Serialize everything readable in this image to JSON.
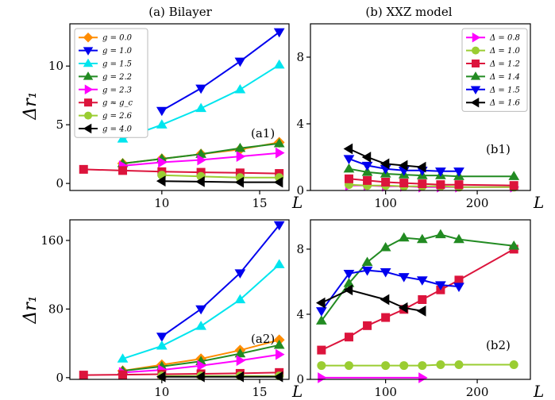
{
  "figure": {
    "title_left": "(a) Bilayer",
    "title_right": "(b) XXZ model",
    "ylabel": "Δr₁",
    "xlabel": "L"
  },
  "chart_data": [
    {
      "id": "a1",
      "type": "line",
      "tag": "(a1)",
      "xlabel": "L",
      "ylabel": "Δr₁",
      "xlim": [
        5.3,
        16.5
      ],
      "ylim": [
        -0.6,
        13.6
      ],
      "xticks": [
        10,
        15
      ],
      "yticks": [
        0,
        5,
        10
      ],
      "legend": "top-left",
      "series": [
        {
          "name": "g = 0.0",
          "color": "#ff8c00",
          "marker": "diamond",
          "x": [
            8,
            10,
            12,
            14,
            16
          ],
          "y": [
            1.7,
            2.1,
            2.5,
            2.9,
            3.5
          ]
        },
        {
          "name": "g = 1.0",
          "color": "#0000ee",
          "marker": "tri-down",
          "x": [
            10,
            12,
            14,
            16
          ],
          "y": [
            6.2,
            8.1,
            10.4,
            12.9
          ]
        },
        {
          "name": "g = 1.5",
          "color": "#00e5ee",
          "marker": "tri-up",
          "x": [
            8,
            10,
            12,
            14,
            16
          ],
          "y": [
            3.8,
            5.0,
            6.4,
            8.0,
            10.1
          ]
        },
        {
          "name": "g = 2.2",
          "color": "#228b22",
          "marker": "tri-up",
          "x": [
            8,
            10,
            12,
            14,
            16
          ],
          "y": [
            1.7,
            2.1,
            2.5,
            3.0,
            3.4
          ]
        },
        {
          "name": "g = 2.3",
          "color": "#ff00ff",
          "marker": "tri-right",
          "x": [
            8,
            10,
            12,
            14,
            16
          ],
          "y": [
            1.5,
            1.8,
            2.0,
            2.3,
            2.6
          ]
        },
        {
          "name": "g ≈ g_c",
          "color": "#dc143c",
          "marker": "square",
          "x": [
            6,
            8,
            10,
            12,
            14,
            16
          ],
          "y": [
            1.2,
            1.1,
            1.0,
            0.95,
            0.9,
            0.85
          ]
        },
        {
          "name": "g = 2.6",
          "color": "#9acd32",
          "marker": "circle",
          "x": [
            10,
            12,
            14,
            16
          ],
          "y": [
            0.7,
            0.6,
            0.5,
            0.5
          ]
        },
        {
          "name": "g = 4.0",
          "color": "#000000",
          "marker": "tri-left",
          "x": [
            10,
            12,
            14,
            16
          ],
          "y": [
            0.2,
            0.15,
            0.1,
            0.1
          ]
        }
      ]
    },
    {
      "id": "b1",
      "type": "line",
      "tag": "(b1)",
      "xlabel": "L",
      "ylabel": "",
      "xlim": [
        18,
        258
      ],
      "ylim": [
        0,
        10
      ],
      "xticks": [
        100,
        200
      ],
      "yticks": [
        0,
        4,
        8
      ],
      "legend": "top-right",
      "series": [
        {
          "name": "Δ = 0.8",
          "color": "#ff00ff",
          "marker": "tri-right",
          "x": [
            60,
            80,
            100,
            120,
            140,
            160,
            180,
            240
          ],
          "y": [
            0.3,
            0.3,
            0.25,
            0.25,
            0.2,
            0.2,
            0.2,
            0.2
          ]
        },
        {
          "name": "Δ = 1.0",
          "color": "#9acd32",
          "marker": "circle",
          "x": [
            60,
            80,
            100,
            120,
            140,
            160,
            180,
            240
          ],
          "y": [
            0.35,
            0.3,
            0.3,
            0.25,
            0.25,
            0.25,
            0.2,
            0.2
          ]
        },
        {
          "name": "Δ = 1.2",
          "color": "#dc143c",
          "marker": "square",
          "x": [
            60,
            80,
            100,
            120,
            140,
            160,
            180,
            240
          ],
          "y": [
            0.7,
            0.6,
            0.5,
            0.45,
            0.4,
            0.35,
            0.35,
            0.3
          ]
        },
        {
          "name": "Δ = 1.4",
          "color": "#228b22",
          "marker": "tri-up",
          "x": [
            60,
            80,
            100,
            120,
            140,
            160,
            180,
            240
          ],
          "y": [
            1.3,
            1.1,
            1.0,
            0.95,
            0.9,
            0.9,
            0.85,
            0.85
          ]
        },
        {
          "name": "Δ = 1.5",
          "color": "#0000ee",
          "marker": "tri-down",
          "x": [
            60,
            80,
            100,
            120,
            140,
            160,
            180
          ],
          "y": [
            1.9,
            1.5,
            1.3,
            1.2,
            1.2,
            1.15,
            1.15
          ]
        },
        {
          "name": "Δ = 1.6",
          "color": "#000000",
          "marker": "tri-left",
          "x": [
            60,
            80,
            100,
            120,
            140
          ],
          "y": [
            2.5,
            2.0,
            1.6,
            1.5,
            1.4
          ]
        }
      ]
    },
    {
      "id": "a2",
      "type": "line",
      "tag": "(a2)",
      "xlabel": "L",
      "ylabel": "Δr₁",
      "xlim": [
        5.3,
        16.5
      ],
      "ylim": [
        -2,
        184
      ],
      "xticks": [
        10,
        15
      ],
      "yticks": [
        0,
        80,
        160
      ],
      "series": [
        {
          "name": "g = 0.0",
          "color": "#ff8c00",
          "marker": "diamond",
          "x": [
            8,
            10,
            12,
            14,
            16
          ],
          "y": [
            8,
            15,
            22,
            32,
            44
          ]
        },
        {
          "name": "g = 1.0",
          "color": "#0000ee",
          "marker": "tri-down",
          "x": [
            10,
            12,
            14,
            16
          ],
          "y": [
            48,
            80,
            122,
            178
          ]
        },
        {
          "name": "g = 1.5",
          "color": "#00e5ee",
          "marker": "tri-up",
          "x": [
            8,
            10,
            12,
            14,
            16
          ],
          "y": [
            22,
            37,
            60,
            91,
            132
          ]
        },
        {
          "name": "g = 2.2",
          "color": "#228b22",
          "marker": "tri-up",
          "x": [
            8,
            10,
            12,
            14,
            16
          ],
          "y": [
            8,
            13,
            19,
            28,
            38
          ]
        },
        {
          "name": "g = 2.3",
          "color": "#ff00ff",
          "marker": "tri-right",
          "x": [
            8,
            10,
            12,
            14,
            16
          ],
          "y": [
            6,
            9,
            14,
            20,
            27
          ]
        },
        {
          "name": "g ≈ g_c",
          "color": "#dc143c",
          "marker": "square",
          "x": [
            6,
            8,
            10,
            12,
            14,
            16
          ],
          "y": [
            3,
            3.5,
            4,
            4.5,
            5,
            6
          ]
        },
        {
          "name": "g = 2.6",
          "color": "#9acd32",
          "marker": "circle",
          "x": [
            10,
            12,
            14,
            16
          ],
          "y": [
            2,
            2,
            2,
            2
          ]
        },
        {
          "name": "g = 4.0",
          "color": "#000000",
          "marker": "tri-left",
          "x": [
            10,
            12,
            14,
            16
          ],
          "y": [
            1,
            1,
            1,
            1
          ]
        }
      ]
    },
    {
      "id": "b2",
      "type": "line",
      "tag": "(b2)",
      "xlabel": "L",
      "ylabel": "",
      "xlim": [
        18,
        258
      ],
      "ylim": [
        0,
        9.8
      ],
      "xticks": [
        100,
        200
      ],
      "yticks": [
        0,
        4,
        8
      ],
      "series": [
        {
          "name": "Δ = 0.8",
          "color": "#ff00ff",
          "marker": "tri-right",
          "x": [
            30,
            140
          ],
          "y": [
            0.1,
            0.1
          ]
        },
        {
          "name": "Δ = 1.0",
          "color": "#9acd32",
          "marker": "circle",
          "x": [
            30,
            60,
            100,
            120,
            140,
            160,
            180,
            240
          ],
          "y": [
            0.85,
            0.85,
            0.85,
            0.85,
            0.85,
            0.9,
            0.9,
            0.9
          ]
        },
        {
          "name": "Δ = 1.2",
          "color": "#dc143c",
          "marker": "square",
          "x": [
            30,
            60,
            80,
            100,
            120,
            140,
            160,
            180,
            240
          ],
          "y": [
            1.8,
            2.6,
            3.3,
            3.8,
            4.3,
            4.9,
            5.5,
            6.1,
            8.0
          ]
        },
        {
          "name": "Δ = 1.4",
          "color": "#228b22",
          "marker": "tri-up",
          "x": [
            30,
            60,
            80,
            100,
            120,
            140,
            160,
            180,
            240
          ],
          "y": [
            3.6,
            5.9,
            7.2,
            8.1,
            8.7,
            8.6,
            8.9,
            8.6,
            8.2
          ]
        },
        {
          "name": "Δ = 1.5",
          "color": "#0000ee",
          "marker": "tri-down",
          "x": [
            30,
            60,
            80,
            100,
            120,
            140,
            160,
            180
          ],
          "y": [
            4.2,
            6.5,
            6.7,
            6.6,
            6.3,
            6.1,
            5.8,
            5.7
          ]
        },
        {
          "name": "Δ = 1.6",
          "color": "#000000",
          "marker": "tri-left",
          "x": [
            30,
            60,
            100,
            120,
            140
          ],
          "y": [
            4.7,
            5.5,
            4.9,
            4.4,
            4.2
          ]
        }
      ]
    }
  ]
}
